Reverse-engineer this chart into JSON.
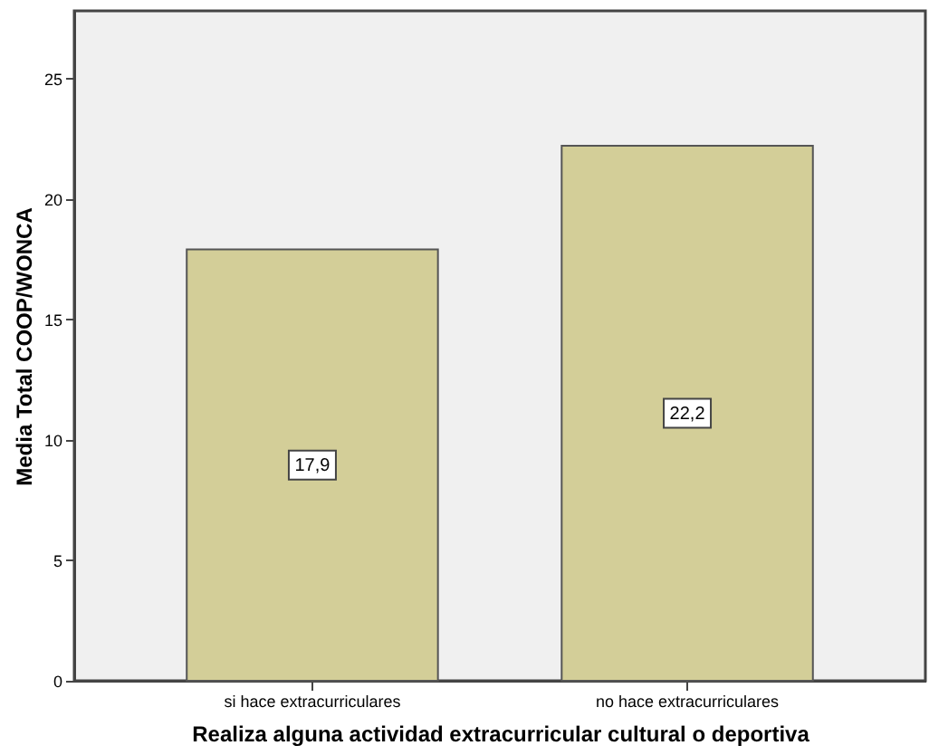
{
  "chart_data": {
    "type": "bar",
    "xlabel": "Realiza alguna actividad extracurricular cultural o deportiva",
    "ylabel": "Media Total COOP/WONCA",
    "categories": [
      "si hace extracurriculares",
      "no hace extracurriculares"
    ],
    "values": [
      17.9,
      22.2
    ],
    "value_labels": [
      "17,9",
      "22,2"
    ],
    "color": "#d3ce98",
    "ylim": [
      0,
      27.8
    ],
    "yticks": [
      0,
      5,
      10,
      15,
      20,
      25
    ],
    "grid": false
  }
}
